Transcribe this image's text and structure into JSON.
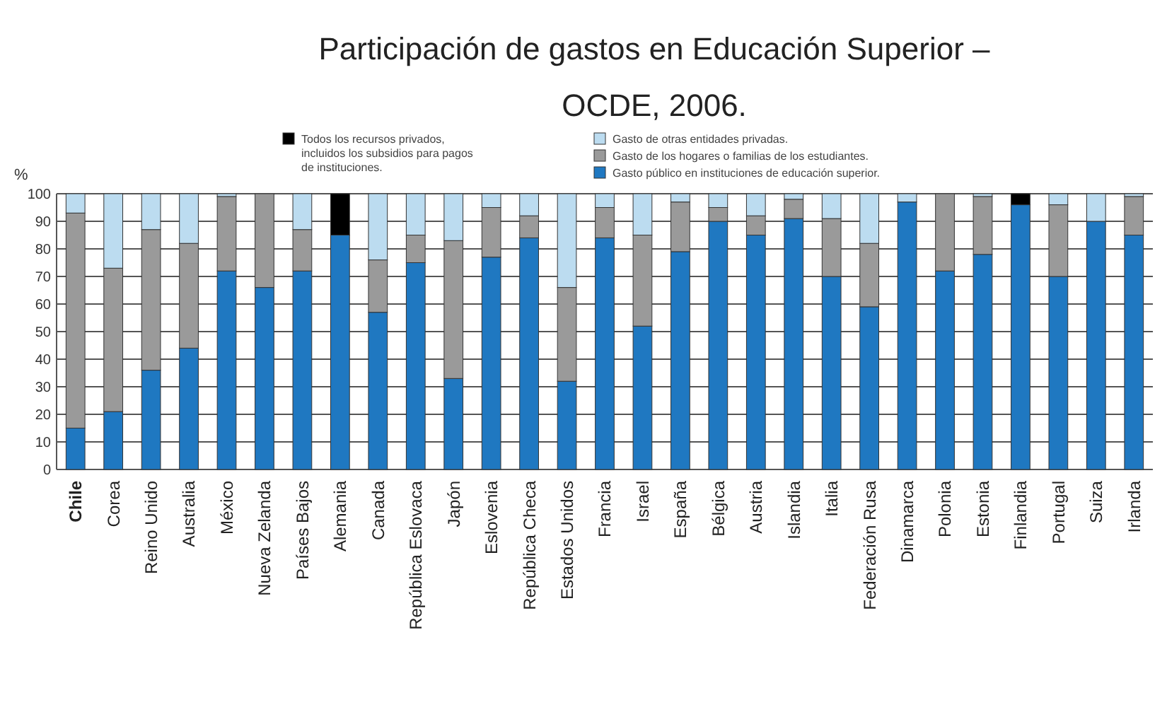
{
  "chart_data": {
    "type": "bar",
    "stacked": true,
    "title": "Participación de gastos en Educación Superior – OCDE, 2006.",
    "ylabel": "%",
    "categories": [
      "Chile",
      "Corea",
      "Reino Unido",
      "Australia",
      "México",
      "Nueva Zelanda",
      "Países Bajos",
      "Alemania",
      "Canada",
      "República Eslovaca",
      "Japón",
      "Eslovenia",
      "República Checa",
      "Estados Unidos",
      "Francia",
      "Israel",
      "España",
      "Bélgica",
      "Austria",
      "Islandia",
      "Italia",
      "Federación Rusa",
      "Dinamarca",
      "Polonia",
      "Estonia",
      "Finlandia",
      "Portugal",
      "Suiza",
      "Irlanda"
    ],
    "series": [
      {
        "name": "Gasto público en instituciones de educación superior.",
        "color": "#1f78c1",
        "values": [
          15,
          21,
          36,
          44,
          72,
          66,
          72,
          85,
          57,
          75,
          33,
          77,
          84,
          32,
          84,
          52,
          79,
          90,
          85,
          91,
          70,
          59,
          97,
          72,
          78,
          96,
          70,
          90,
          85
        ]
      },
      {
        "name": "Gasto de los hogares o familias de los estudiantes.",
        "color": "#9a9a9a",
        "values": [
          78,
          52,
          51,
          38,
          27,
          34,
          15,
          null,
          19,
          10,
          50,
          18,
          8,
          34,
          11,
          33,
          18,
          5,
          7,
          7,
          21,
          23,
          null,
          28,
          21,
          null,
          26,
          null,
          14
        ]
      },
      {
        "name": "Gasto de otras entidades privadas.",
        "color": "#bcdcf0",
        "values": [
          7,
          27,
          13,
          18,
          1,
          null,
          13,
          null,
          24,
          15,
          17,
          5,
          8,
          34,
          5,
          15,
          3,
          5,
          8,
          2,
          9,
          18,
          3,
          null,
          1,
          null,
          4,
          10,
          1
        ]
      },
      {
        "name": "Todos los recursos privados, incluidos los subsidios para pagos de instituciones.",
        "color": "#000000",
        "values": [
          null,
          null,
          null,
          null,
          null,
          null,
          null,
          15,
          null,
          null,
          null,
          null,
          null,
          null,
          null,
          null,
          null,
          null,
          null,
          null,
          null,
          null,
          null,
          null,
          null,
          4,
          null,
          null,
          null
        ]
      }
    ],
    "ylim": [
      0,
      100
    ],
    "yticks": [
      0,
      10,
      20,
      30,
      40,
      50,
      60,
      70,
      80,
      90,
      100
    ],
    "grid": "y",
    "legend": "top"
  }
}
